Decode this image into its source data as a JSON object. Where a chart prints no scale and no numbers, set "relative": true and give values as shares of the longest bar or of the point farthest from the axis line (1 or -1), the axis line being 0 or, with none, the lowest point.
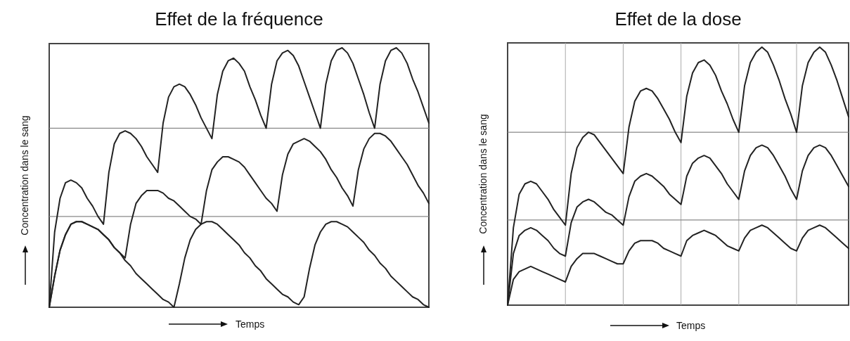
{
  "chart_data": [
    {
      "type": "line",
      "title": "Effet de la fréquence",
      "xlabel": "Temps",
      "ylabel": "Concentration dans le sang",
      "relative": true,
      "categories": [
        null,
        null,
        null,
        null,
        null,
        null,
        null,
        null,
        null,
        null,
        null,
        null,
        null,
        null,
        null,
        null,
        null,
        null,
        null,
        null,
        null,
        null,
        null,
        null,
        null,
        null,
        null,
        null,
        null,
        null,
        null,
        null,
        null,
        null,
        null,
        null,
        null,
        null,
        null,
        null,
        null,
        null,
        null,
        null,
        null,
        null,
        null,
        null,
        null,
        null,
        null,
        null,
        null,
        null,
        null,
        null,
        null,
        null,
        null,
        null,
        null,
        null,
        null,
        null,
        null,
        null,
        null,
        null,
        null,
        null,
        null
      ],
      "series": [
        {
          "color": "#222222",
          "values": [
            0,
            0.29,
            0.42,
            0.48,
            0.49,
            0.48,
            0.46,
            0.42,
            0.39,
            0.35,
            0.32,
            0.52,
            0.63,
            0.67,
            0.68,
            0.67,
            0.65,
            0.62,
            0.58,
            0.55,
            0.52,
            0.71,
            0.81,
            0.85,
            0.86,
            0.85,
            0.82,
            0.78,
            0.73,
            0.69,
            0.65,
            0.82,
            0.91,
            0.95,
            0.96,
            0.94,
            0.91,
            0.85,
            0.8,
            0.74,
            0.69,
            0.86,
            0.95,
            0.98,
            0.99,
            0.97,
            0.93,
            0.87,
            0.81,
            0.75,
            0.69,
            0.86,
            0.95,
            0.99,
            1.0,
            0.98,
            0.94,
            0.88,
            0.82,
            0.75,
            0.69,
            0.86,
            0.95,
            0.99,
            1.0,
            0.98,
            0.94,
            0.88,
            0.83,
            0.77,
            0.71
          ]
        },
        {
          "color": "#222222",
          "values": [
            0,
            0.12,
            0.22,
            0.28,
            0.32,
            0.33,
            0.33,
            0.32,
            0.31,
            0.3,
            0.28,
            0.26,
            0.23,
            0.21,
            0.19,
            0.32,
            0.4,
            0.43,
            0.45,
            0.45,
            0.45,
            0.44,
            0.42,
            0.41,
            0.39,
            0.37,
            0.35,
            0.34,
            0.32,
            0.45,
            0.53,
            0.56,
            0.58,
            0.58,
            0.57,
            0.56,
            0.54,
            0.51,
            0.48,
            0.45,
            0.42,
            0.4,
            0.37,
            0.51,
            0.59,
            0.63,
            0.64,
            0.65,
            0.64,
            0.62,
            0.6,
            0.57,
            0.53,
            0.5,
            0.46,
            0.43,
            0.39,
            0.53,
            0.61,
            0.65,
            0.67,
            0.67,
            0.66,
            0.64,
            0.61,
            0.58,
            0.55,
            0.51,
            0.47,
            0.44,
            0.4
          ]
        },
        {
          "color": "#222222",
          "values": [
            0,
            0.12,
            0.22,
            0.28,
            0.32,
            0.33,
            0.33,
            0.32,
            0.31,
            0.3,
            0.28,
            0.26,
            0.23,
            0.21,
            0.18,
            0.16,
            0.13,
            0.11,
            0.09,
            0.07,
            0.05,
            0.03,
            0.02,
            0,
            0.09,
            0.19,
            0.26,
            0.3,
            0.32,
            0.33,
            0.33,
            0.32,
            0.3,
            0.28,
            0.26,
            0.24,
            0.21,
            0.19,
            0.16,
            0.14,
            0.11,
            0.09,
            0.07,
            0.05,
            0.04,
            0.02,
            0.01,
            0.04,
            0.15,
            0.24,
            0.29,
            0.32,
            0.33,
            0.33,
            0.32,
            0.31,
            0.29,
            0.27,
            0.25,
            0.22,
            0.2,
            0.17,
            0.15,
            0.12,
            0.1,
            0.08,
            0.06,
            0.04,
            0.03,
            0.01,
            0
          ]
        }
      ],
      "ref_lines": [
        {
          "axis": "y",
          "value": 0.35,
          "color": "#888888"
        },
        {
          "axis": "y",
          "value": 0.69,
          "color": "#888888"
        }
      ]
    },
    {
      "type": "line",
      "title": "Effet de la dose",
      "xlabel": "Temps",
      "ylabel": "Concentration dans le sang",
      "relative": true,
      "grid": "x",
      "categories": [
        null,
        null,
        null,
        null,
        null,
        null,
        null,
        null,
        null,
        null,
        null,
        null,
        null,
        null,
        null,
        null,
        null,
        null,
        null,
        null,
        null,
        null,
        null,
        null,
        null,
        null,
        null,
        null,
        null,
        null,
        null,
        null,
        null,
        null,
        null,
        null,
        null,
        null,
        null,
        null,
        null,
        null,
        null,
        null,
        null,
        null,
        null,
        null,
        null,
        null,
        null,
        null,
        null,
        null,
        null,
        null,
        null,
        null,
        null,
        null
      ],
      "series": [
        {
          "color": "#222222",
          "values": [
            0,
            0.3,
            0.43,
            0.47,
            0.48,
            0.47,
            0.44,
            0.41,
            0.37,
            0.34,
            0.31,
            0.51,
            0.61,
            0.65,
            0.67,
            0.66,
            0.63,
            0.6,
            0.57,
            0.54,
            0.51,
            0.69,
            0.79,
            0.83,
            0.84,
            0.83,
            0.8,
            0.76,
            0.72,
            0.67,
            0.63,
            0.81,
            0.9,
            0.94,
            0.95,
            0.93,
            0.89,
            0.83,
            0.78,
            0.72,
            0.67,
            0.85,
            0.94,
            0.98,
            1.0,
            0.98,
            0.93,
            0.87,
            0.8,
            0.74,
            0.67,
            0.85,
            0.94,
            0.98,
            1.0,
            0.98,
            0.93,
            0.87,
            0.8,
            0.73
          ]
        },
        {
          "color": "#222222",
          "values": [
            0,
            0.2,
            0.27,
            0.29,
            0.3,
            0.29,
            0.27,
            0.25,
            0.22,
            0.2,
            0.19,
            0.32,
            0.38,
            0.4,
            0.41,
            0.4,
            0.38,
            0.36,
            0.35,
            0.33,
            0.31,
            0.42,
            0.48,
            0.5,
            0.51,
            0.5,
            0.48,
            0.46,
            0.43,
            0.41,
            0.39,
            0.5,
            0.55,
            0.57,
            0.58,
            0.57,
            0.54,
            0.51,
            0.47,
            0.44,
            0.41,
            0.52,
            0.58,
            0.61,
            0.62,
            0.61,
            0.58,
            0.54,
            0.5,
            0.45,
            0.41,
            0.52,
            0.58,
            0.61,
            0.62,
            0.61,
            0.58,
            0.54,
            0.5,
            0.46
          ]
        },
        {
          "color": "#222222",
          "values": [
            0,
            0.1,
            0.13,
            0.14,
            0.15,
            0.14,
            0.13,
            0.12,
            0.11,
            0.1,
            0.09,
            0.15,
            0.18,
            0.2,
            0.2,
            0.2,
            0.19,
            0.18,
            0.17,
            0.16,
            0.16,
            0.21,
            0.24,
            0.25,
            0.25,
            0.25,
            0.24,
            0.22,
            0.21,
            0.2,
            0.19,
            0.25,
            0.27,
            0.28,
            0.29,
            0.28,
            0.27,
            0.25,
            0.23,
            0.22,
            0.21,
            0.26,
            0.29,
            0.3,
            0.31,
            0.3,
            0.28,
            0.26,
            0.24,
            0.22,
            0.21,
            0.26,
            0.29,
            0.3,
            0.31,
            0.3,
            0.28,
            0.26,
            0.24,
            0.22
          ]
        }
      ],
      "ref_lines": [
        {
          "axis": "y",
          "value": 0.33,
          "color": "#888888"
        },
        {
          "axis": "y",
          "value": 0.67,
          "color": "#888888"
        }
      ]
    }
  ]
}
